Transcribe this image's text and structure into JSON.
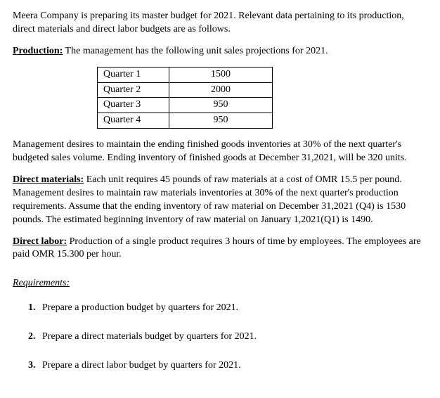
{
  "intro": "Meera Company is preparing its master budget for 2021. Relevant data pertaining to its production, direct materials and direct labor budgets are as follows.",
  "production": {
    "label": "Production:",
    "text": " The management has the following unit sales projections for 2021.",
    "table": {
      "rows": [
        {
          "label": "Quarter 1",
          "value": "1500"
        },
        {
          "label": "Quarter 2",
          "value": "2000"
        },
        {
          "label": "Quarter 3",
          "value": "950"
        },
        {
          "label": "Quarter 4",
          "value": "950"
        }
      ]
    },
    "note": "Management desires to maintain the ending finished goods inventories at 30% of the next quarter's budgeted sales volume. Ending inventory of finished goods at December 31,2021, will be 320 units."
  },
  "direct_materials": {
    "label": "Direct materials:",
    "text": " Each unit requires 45 pounds of raw materials at a cost of  OMR 15.5 per pound. Management desires to maintain raw materials inventories at 30% of the next quarter's production requirements. Assume that the ending inventory of raw material on  December 31,2021 (Q4) is 1530 pounds. The estimated beginning inventory of raw material on January 1,2021(Q1) is 1490."
  },
  "direct_labor": {
    "label": "Direct labor:",
    "text": " Production of a single product requires 3 hours of time by employees. The employees are paid OMR 15.300 per hour."
  },
  "requirements": {
    "heading": "Requirements:",
    "items": [
      "Prepare a production budget by quarters for 2021.",
      "Prepare a direct materials budget by quarters for 2021.",
      "Prepare a direct labor budget by quarters for 2021."
    ]
  }
}
